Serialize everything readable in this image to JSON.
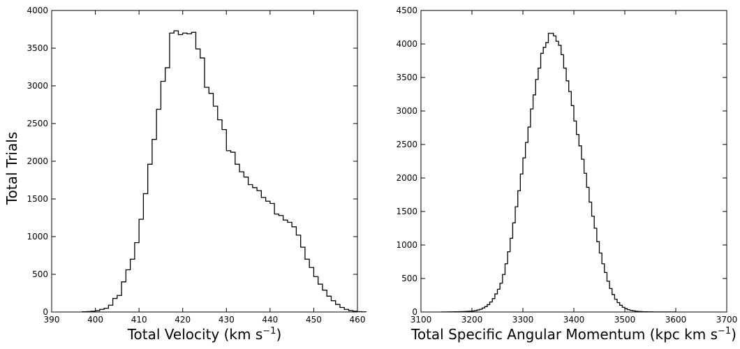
{
  "chart_data": [
    {
      "type": "histogram",
      "xlabel_main": "Total Velocity (km s",
      "xlabel_sup": "−1",
      "xlabel_close": ")",
      "ylabel": "Total Trials",
      "xlim": [
        390,
        460
      ],
      "ylim": [
        0,
        4000
      ],
      "xticks": [
        390,
        400,
        410,
        420,
        430,
        440,
        450,
        460
      ],
      "yticks": [
        0,
        500,
        1000,
        1500,
        2000,
        2500,
        3000,
        3500,
        4000
      ],
      "bin_start": 397,
      "bin_width": 1,
      "values": [
        3,
        5,
        10,
        18,
        35,
        50,
        90,
        180,
        220,
        400,
        560,
        700,
        920,
        1230,
        1570,
        1960,
        2290,
        2690,
        3060,
        3240,
        3700,
        3730,
        3680,
        3700,
        3690,
        3710,
        3490,
        3370,
        2980,
        2900,
        2730,
        2550,
        2420,
        2140,
        2120,
        1960,
        1860,
        1790,
        1690,
        1650,
        1610,
        1520,
        1470,
        1440,
        1300,
        1280,
        1220,
        1190,
        1130,
        1020,
        860,
        700,
        590,
        470,
        370,
        290,
        210,
        150,
        100,
        60,
        35,
        18,
        10,
        4,
        2
      ]
    },
    {
      "type": "histogram",
      "xlabel_main": "Total Specific Angular Momentum (kpc km s",
      "xlabel_sup": "−1",
      "xlabel_close": ")",
      "ylabel": "",
      "xlim": [
        3100,
        3700
      ],
      "ylim": [
        0,
        4500
      ],
      "xticks": [
        3100,
        3200,
        3300,
        3400,
        3500,
        3600,
        3700
      ],
      "yticks": [
        0,
        500,
        1000,
        1500,
        2000,
        2500,
        3000,
        3500,
        4000,
        4500
      ],
      "bin_start": 3140,
      "bin_width": 5,
      "values": [
        1,
        1,
        1,
        2,
        2,
        3,
        3,
        5,
        6,
        8,
        10,
        12,
        15,
        20,
        30,
        40,
        60,
        80,
        110,
        150,
        200,
        270,
        340,
        430,
        560,
        720,
        900,
        1100,
        1330,
        1570,
        1810,
        2060,
        2300,
        2530,
        2760,
        3030,
        3240,
        3470,
        3640,
        3860,
        3950,
        4020,
        4160,
        4160,
        4120,
        4040,
        3980,
        3840,
        3640,
        3450,
        3290,
        3080,
        2850,
        2650,
        2480,
        2280,
        2070,
        1860,
        1640,
        1430,
        1250,
        1050,
        880,
        720,
        590,
        460,
        350,
        260,
        190,
        140,
        100,
        70,
        50,
        35,
        25,
        18,
        12,
        8,
        6,
        4,
        3,
        2,
        2,
        1,
        1,
        1,
        1,
        1,
        1,
        1,
        1,
        1
      ]
    }
  ]
}
